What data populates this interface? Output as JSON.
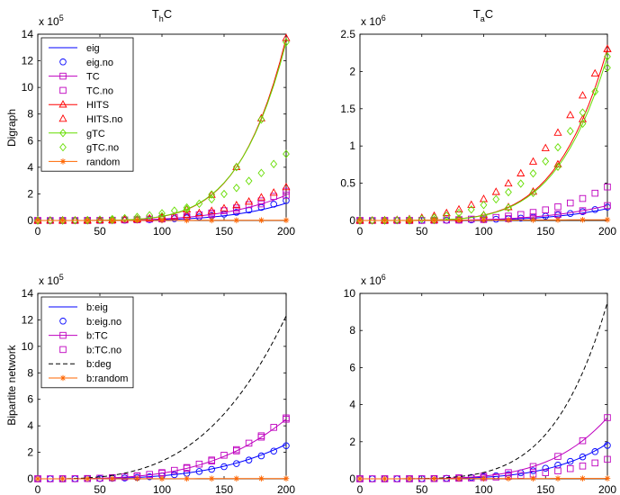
{
  "figure": {
    "column_titles": [
      {
        "base": "T",
        "sub": "h",
        "rest": "C"
      },
      {
        "base": "T",
        "sub": "a",
        "rest": "C"
      }
    ],
    "row_labels": [
      "Digraph",
      "Bipartite network"
    ]
  },
  "chart_data": [
    {
      "type": "line",
      "id": "digraph-thc",
      "title": "ThC",
      "ylabel": "Digraph",
      "xlim": [
        0,
        200
      ],
      "ylim": [
        0,
        14
      ],
      "xticks": [
        0,
        50,
        100,
        150,
        200
      ],
      "yticks": [
        0,
        2,
        4,
        6,
        8,
        10,
        12,
        14
      ],
      "exponent_label": {
        "prefix": "x 10",
        "power": "5"
      },
      "legend": "top-left",
      "series": [
        {
          "name": "eig",
          "color": "#0000ff",
          "style": "line",
          "final": 1.3,
          "power": 4.5
        },
        {
          "name": "eig.no",
          "color": "#0000ff",
          "style": "circle",
          "final": 1.5,
          "power": 4.0
        },
        {
          "name": "TC",
          "color": "#bf00bf",
          "style": "line-square",
          "final": 1.9,
          "power": 4.0
        },
        {
          "name": "TC.no",
          "color": "#bf00bf",
          "style": "square",
          "final": 2.2,
          "power": 3.8
        },
        {
          "name": "HITS",
          "color": "#ff0000",
          "style": "line-triangle",
          "final": 13.7,
          "power": 5.5
        },
        {
          "name": "HITS.no",
          "color": "#ff0000",
          "style": "triangle",
          "final": 2.5,
          "power": 3.5
        },
        {
          "name": "gTC",
          "color": "#66dd00",
          "style": "line-diamond",
          "final": 13.4,
          "power": 5.4
        },
        {
          "name": "gTC.no",
          "color": "#66dd00",
          "style": "diamond",
          "final": 5.0,
          "power": 3.2
        },
        {
          "name": "random",
          "color": "#ff6600",
          "style": "line-star",
          "final": 0.02,
          "power": 1.0
        }
      ]
    },
    {
      "type": "line",
      "id": "digraph-tac",
      "title": "TaC",
      "xlim": [
        0,
        200
      ],
      "ylim": [
        0,
        2.5
      ],
      "xticks": [
        0,
        50,
        100,
        150,
        200
      ],
      "yticks": [
        0,
        0.5,
        1,
        1.5,
        2,
        2.5
      ],
      "ytick_labels": [
        "0",
        "0.5",
        "1",
        "1.5",
        "2",
        "2.5"
      ],
      "exponent_label": {
        "prefix": "x 10",
        "power": "6"
      },
      "series": [
        {
          "name": "eig",
          "color": "#0000ff",
          "style": "line",
          "final": 0.16,
          "power": 4.5
        },
        {
          "name": "eig.no",
          "color": "#0000ff",
          "style": "circle",
          "final": 0.18,
          "power": 4.0
        },
        {
          "name": "TC",
          "color": "#bf00bf",
          "style": "line-square",
          "final": 0.2,
          "power": 4.0
        },
        {
          "name": "TC.no",
          "color": "#bf00bf",
          "style": "square",
          "final": 0.45,
          "power": 4.0
        },
        {
          "name": "HITS",
          "color": "#ff0000",
          "style": "line-triangle",
          "final": 2.3,
          "power": 5.0
        },
        {
          "name": "HITS.no",
          "color": "#ff0000",
          "style": "triangle",
          "final": 2.3,
          "power": 3.0
        },
        {
          "name": "gTC",
          "color": "#66dd00",
          "style": "line-diamond",
          "final": 2.2,
          "power": 5.0
        },
        {
          "name": "gTC.no",
          "color": "#66dd00",
          "style": "diamond",
          "final": 2.05,
          "power": 3.3
        },
        {
          "name": "random",
          "color": "#ff6600",
          "style": "line-star",
          "final": 0.01,
          "power": 1.0
        }
      ]
    },
    {
      "type": "line",
      "id": "bipartite-thc",
      "xlim": [
        0,
        200
      ],
      "ylim": [
        0,
        14
      ],
      "xticks": [
        0,
        50,
        100,
        150,
        200
      ],
      "yticks": [
        0,
        2,
        4,
        6,
        8,
        10,
        12,
        14
      ],
      "ylabel": "Bipartite network",
      "exponent_label": {
        "prefix": "x 10",
        "power": "5"
      },
      "legend": "top-left",
      "series": [
        {
          "name": "b:eig",
          "color": "#0000ff",
          "style": "line",
          "final": 2.6,
          "power": 3.5
        },
        {
          "name": "b:eig.no",
          "color": "#0000ff",
          "style": "circle",
          "final": 2.5,
          "power": 3.5
        },
        {
          "name": "b:TC",
          "color": "#bf00bf",
          "style": "line-square",
          "final": 4.5,
          "power": 3.4
        },
        {
          "name": "b:TC.no",
          "color": "#bf00bf",
          "style": "square",
          "final": 4.6,
          "power": 3.3
        },
        {
          "name": "b:deg",
          "color": "#000000",
          "style": "dashed",
          "final": 12.3,
          "power": 3.2
        },
        {
          "name": "b:random",
          "color": "#ff6600",
          "style": "line-star",
          "final": 0.02,
          "power": 1.0
        }
      ]
    },
    {
      "type": "line",
      "id": "bipartite-tac",
      "xlim": [
        0,
        200
      ],
      "ylim": [
        0,
        10
      ],
      "xticks": [
        0,
        50,
        100,
        150,
        200
      ],
      "yticks": [
        0,
        2,
        4,
        6,
        8,
        10
      ],
      "exponent_label": {
        "prefix": "x 10",
        "power": "6"
      },
      "series": [
        {
          "name": "b:eig",
          "color": "#0000ff",
          "style": "line",
          "final": 1.9,
          "power": 4.5
        },
        {
          "name": "b:eig.no",
          "color": "#0000ff",
          "style": "circle",
          "final": 1.8,
          "power": 4.0
        },
        {
          "name": "b:TC",
          "color": "#bf00bf",
          "style": "line-square",
          "final": 3.3,
          "power": 4.5
        },
        {
          "name": "b:TC.no",
          "color": "#bf00bf",
          "style": "square",
          "final": 1.05,
          "power": 4.0
        },
        {
          "name": "b:deg",
          "color": "#000000",
          "style": "dashed",
          "final": 9.5,
          "power": 4.8
        },
        {
          "name": "b:random",
          "color": "#ff6600",
          "style": "line-star",
          "final": 0.02,
          "power": 1.0
        }
      ]
    }
  ]
}
